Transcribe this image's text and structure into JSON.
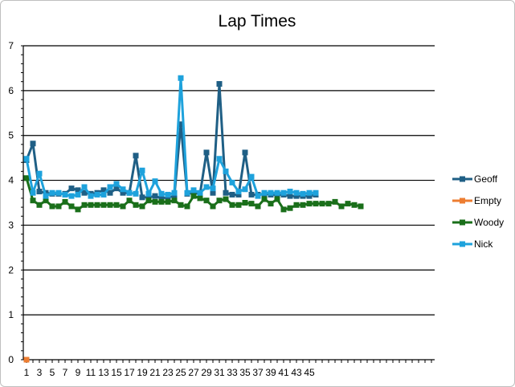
{
  "chart_data": {
    "type": "line",
    "title": "Lap Times",
    "xlabel": "",
    "ylabel": "",
    "ylim": [
      0,
      7
    ],
    "yticks": [
      "0",
      "1",
      "2",
      "3",
      "4",
      "5",
      "6",
      "7"
    ],
    "xticks": [
      "1",
      "3",
      "5",
      "7",
      "9",
      "11",
      "13",
      "15",
      "17",
      "19",
      "21",
      "23",
      "25",
      "27",
      "29",
      "31",
      "33",
      "35",
      "37",
      "39",
      "41",
      "43",
      "45"
    ],
    "x_range": [
      1,
      64
    ],
    "grid": "horizontal",
    "legend_position": "right",
    "series": [
      {
        "name": "Geoff",
        "color": "#1f5f85",
        "x": [
          1,
          2,
          3,
          4,
          5,
          6,
          7,
          8,
          9,
          10,
          11,
          12,
          13,
          14,
          15,
          16,
          17,
          18,
          19,
          20,
          21,
          22,
          23,
          24,
          25,
          26,
          27,
          28,
          29,
          30,
          31,
          32,
          33,
          34,
          35,
          36,
          37,
          38,
          39,
          40,
          41,
          42,
          43,
          44,
          45,
          46
        ],
        "values": [
          4.45,
          4.82,
          3.75,
          3.72,
          3.7,
          3.7,
          3.7,
          3.82,
          3.78,
          3.72,
          3.7,
          3.72,
          3.78,
          3.72,
          3.82,
          3.72,
          3.72,
          4.55,
          3.62,
          3.62,
          3.65,
          3.6,
          3.62,
          3.65,
          5.25,
          3.7,
          3.72,
          3.7,
          4.62,
          3.72,
          6.15,
          3.72,
          3.68,
          3.68,
          4.62,
          3.68,
          3.68,
          3.7,
          3.68,
          3.68,
          3.68,
          3.65,
          3.65,
          3.65,
          3.65,
          3.68
        ]
      },
      {
        "name": "Empty",
        "color": "#ed7d31",
        "x": [
          1
        ],
        "values": [
          0
        ]
      },
      {
        "name": "Woody",
        "color": "#1a6f1a",
        "x": [
          1,
          2,
          3,
          4,
          5,
          6,
          7,
          8,
          9,
          10,
          11,
          12,
          13,
          14,
          15,
          16,
          17,
          18,
          19,
          20,
          21,
          22,
          23,
          24,
          25,
          26,
          27,
          28,
          29,
          30,
          31,
          32,
          33,
          34,
          35,
          36,
          37,
          38,
          39,
          40,
          41,
          42,
          43,
          44,
          45,
          46,
          47,
          48,
          49,
          50,
          51,
          52,
          53
        ],
        "values": [
          4.05,
          3.55,
          3.45,
          3.55,
          3.42,
          3.42,
          3.52,
          3.42,
          3.35,
          3.45,
          3.45,
          3.45,
          3.45,
          3.45,
          3.45,
          3.42,
          3.55,
          3.45,
          3.42,
          3.55,
          3.52,
          3.52,
          3.52,
          3.55,
          3.45,
          3.42,
          3.65,
          3.6,
          3.55,
          3.42,
          3.55,
          3.58,
          3.45,
          3.45,
          3.5,
          3.48,
          3.42,
          3.58,
          3.48,
          3.58,
          3.35,
          3.38,
          3.45,
          3.45,
          3.48,
          3.48,
          3.48,
          3.48,
          3.52,
          3.42,
          3.48,
          3.45,
          3.42
        ]
      },
      {
        "name": "Nick",
        "color": "#1ea2dc",
        "x": [
          1,
          2,
          3,
          4,
          5,
          6,
          7,
          8,
          9,
          10,
          11,
          12,
          13,
          14,
          15,
          16,
          17,
          18,
          19,
          20,
          21,
          22,
          23,
          24,
          25,
          26,
          27,
          28,
          29,
          30,
          31,
          32,
          33,
          34,
          35,
          36,
          37,
          38,
          39,
          40,
          41,
          42,
          43,
          44,
          45,
          46
        ],
        "values": [
          4.48,
          3.72,
          4.15,
          3.65,
          3.72,
          3.72,
          3.68,
          3.65,
          3.68,
          3.85,
          3.65,
          3.68,
          3.68,
          3.85,
          3.92,
          3.8,
          3.72,
          3.7,
          4.22,
          3.7,
          3.98,
          3.7,
          3.68,
          3.72,
          6.28,
          3.72,
          3.78,
          3.72,
          3.85,
          3.82,
          4.48,
          4.2,
          3.95,
          3.75,
          3.8,
          4.08,
          3.65,
          3.72,
          3.72,
          3.72,
          3.72,
          3.75,
          3.72,
          3.7,
          3.72,
          3.72
        ]
      }
    ]
  }
}
